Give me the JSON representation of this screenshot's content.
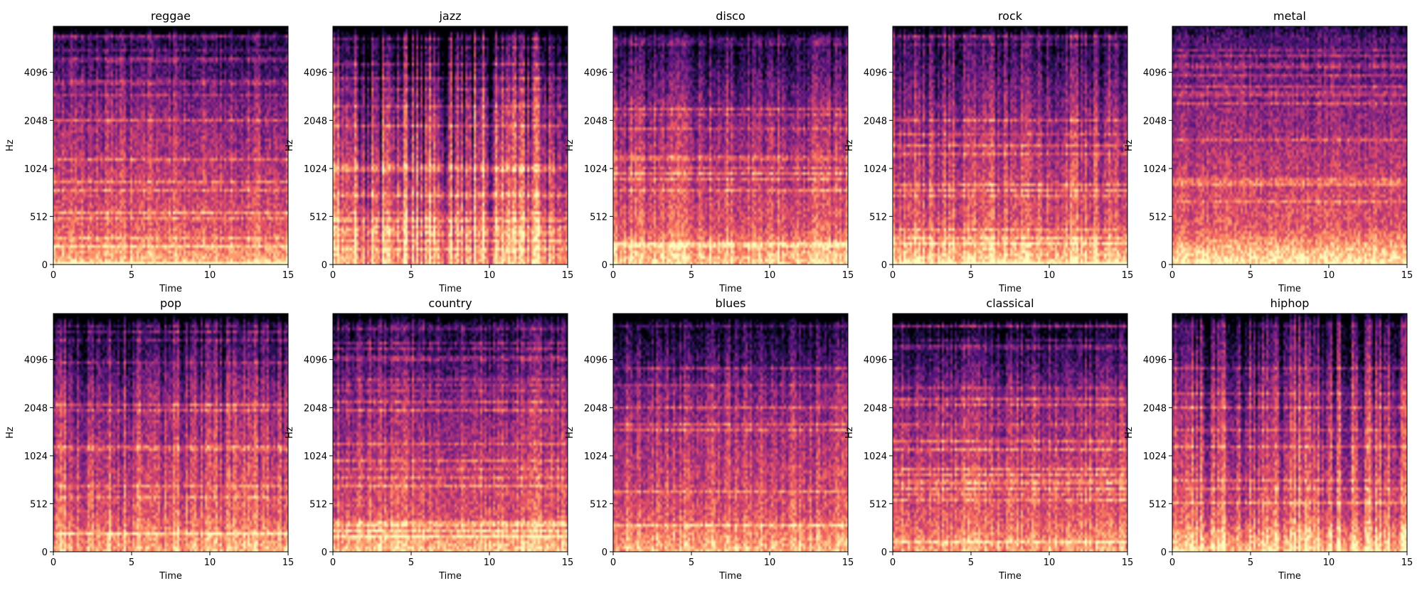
{
  "chart_data": [
    {
      "type": "heatmap",
      "title": "reggae",
      "xlabel": "Time",
      "ylabel": "Hz",
      "xlim": [
        0,
        15
      ],
      "x_ticks": [
        "0",
        "5",
        "10",
        "15"
      ],
      "y_ticks": [
        "0",
        "512",
        "1024",
        "2048",
        "4096"
      ],
      "style": {
        "dark_top": 0.45,
        "bright_low": 0.35,
        "vertical_bands": 0.25,
        "harmonic_lines": 0.6
      }
    },
    {
      "type": "heatmap",
      "title": "jazz",
      "xlabel": "Time",
      "ylabel": "Hz",
      "xlim": [
        0,
        15
      ],
      "x_ticks": [
        "0",
        "5",
        "10",
        "15"
      ],
      "y_ticks": [
        "0",
        "512",
        "1024",
        "2048",
        "4096"
      ],
      "style": {
        "dark_top": 0.7,
        "bright_low": 0.3,
        "vertical_bands": 0.8,
        "harmonic_lines": 0.5
      }
    },
    {
      "type": "heatmap",
      "title": "disco",
      "xlabel": "Time",
      "ylabel": "Hz",
      "xlim": [
        0,
        15
      ],
      "x_ticks": [
        "0",
        "5",
        "10",
        "15"
      ],
      "y_ticks": [
        "0",
        "512",
        "1024",
        "2048",
        "4096"
      ],
      "style": {
        "dark_top": 0.5,
        "bright_low": 0.5,
        "vertical_bands": 0.35,
        "harmonic_lines": 0.4
      }
    },
    {
      "type": "heatmap",
      "title": "rock",
      "xlabel": "Time",
      "ylabel": "Hz",
      "xlim": [
        0,
        15
      ],
      "x_ticks": [
        "0",
        "5",
        "10",
        "15"
      ],
      "y_ticks": [
        "0",
        "512",
        "1024",
        "2048",
        "4096"
      ],
      "style": {
        "dark_top": 0.35,
        "bright_low": 0.55,
        "vertical_bands": 0.4,
        "harmonic_lines": 0.3
      }
    },
    {
      "type": "heatmap",
      "title": "metal",
      "xlabel": "Time",
      "ylabel": "Hz",
      "xlim": [
        0,
        15
      ],
      "x_ticks": [
        "0",
        "5",
        "10",
        "15"
      ],
      "y_ticks": [
        "0",
        "512",
        "1024",
        "2048",
        "4096"
      ],
      "style": {
        "dark_top": 0.15,
        "bright_low": 0.65,
        "vertical_bands": 0.15,
        "harmonic_lines": 0.3
      }
    },
    {
      "type": "heatmap",
      "title": "pop",
      "xlabel": "Time",
      "ylabel": "Hz",
      "xlim": [
        0,
        15
      ],
      "x_ticks": [
        "0",
        "5",
        "10",
        "15"
      ],
      "y_ticks": [
        "0",
        "512",
        "1024",
        "2048",
        "4096"
      ],
      "style": {
        "dark_top": 0.55,
        "bright_low": 0.3,
        "vertical_bands": 0.45,
        "harmonic_lines": 0.4
      }
    },
    {
      "type": "heatmap",
      "title": "country",
      "xlabel": "Time",
      "ylabel": "Hz",
      "xlim": [
        0,
        15
      ],
      "x_ticks": [
        "0",
        "5",
        "10",
        "15"
      ],
      "y_ticks": [
        "0",
        "512",
        "1024",
        "2048",
        "4096"
      ],
      "style": {
        "dark_top": 0.4,
        "bright_low": 0.45,
        "vertical_bands": 0.3,
        "harmonic_lines": 0.6
      }
    },
    {
      "type": "heatmap",
      "title": "blues",
      "xlabel": "Time",
      "ylabel": "Hz",
      "xlim": [
        0,
        15
      ],
      "x_ticks": [
        "0",
        "5",
        "10",
        "15"
      ],
      "y_ticks": [
        "0",
        "512",
        "1024",
        "2048",
        "4096"
      ],
      "style": {
        "dark_top": 0.6,
        "bright_low": 0.35,
        "vertical_bands": 0.3,
        "harmonic_lines": 0.3
      }
    },
    {
      "type": "heatmap",
      "title": "classical",
      "xlabel": "Time",
      "ylabel": "Hz",
      "xlim": [
        0,
        15
      ],
      "x_ticks": [
        "0",
        "5",
        "10",
        "15"
      ],
      "y_ticks": [
        "0",
        "512",
        "1024",
        "2048",
        "4096"
      ],
      "style": {
        "dark_top": 0.75,
        "bright_low": 0.25,
        "vertical_bands": 0.3,
        "harmonic_lines": 0.55
      }
    },
    {
      "type": "heatmap",
      "title": "hiphop",
      "xlabel": "Time",
      "ylabel": "Hz",
      "xlim": [
        0,
        15
      ],
      "x_ticks": [
        "0",
        "5",
        "10",
        "15"
      ],
      "y_ticks": [
        "0",
        "512",
        "1024",
        "2048",
        "4096"
      ],
      "style": {
        "dark_top": 0.4,
        "bright_low": 0.5,
        "vertical_bands": 0.55,
        "harmonic_lines": 0.35
      }
    }
  ],
  "colormap": [
    "#000004",
    "#1d1147",
    "#51127c",
    "#822681",
    "#b73779",
    "#e75263",
    "#fc8961",
    "#fec287",
    "#fcfdbf"
  ]
}
